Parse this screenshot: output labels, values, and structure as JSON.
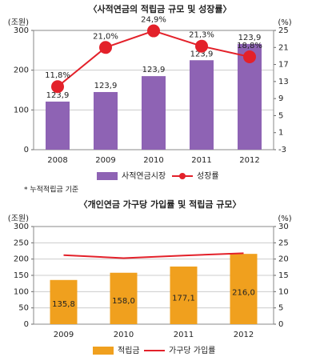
{
  "chart_data": [
    {
      "type": "bar",
      "title": "〈사적연금의 적립금 규모 및 성장률〉",
      "y_label": "(조원)",
      "y2_label": "(%)",
      "categories": [
        "2008",
        "2009",
        "2010",
        "2011",
        "2012"
      ],
      "series": [
        {
          "name": "사적연금시장",
          "color": "#8e63b4",
          "values": [
            121,
            145,
            185,
            225,
            266
          ]
        },
        {
          "name": "성장률",
          "type": "line",
          "axis": "y2",
          "markers": true,
          "color": "#e3212a",
          "values": [
            11.8,
            21.0,
            24.9,
            21.3,
            18.8
          ],
          "value_labels": [
            "11,8%",
            "21,0%",
            "24,9%",
            "21,3%",
            "18,8%"
          ]
        }
      ],
      "annotations": [
        "123,9",
        "123,9",
        "123,9",
        "123,9",
        "123,9"
      ],
      "ylim": [
        0,
        300
      ],
      "yticks": [
        0,
        100,
        200,
        300
      ],
      "y2lim": [
        -3,
        25
      ],
      "y2ticks": [
        -3,
        1,
        5,
        9,
        13,
        17,
        21,
        25
      ],
      "grid": true,
      "footnote": "* 누적적립금 기준"
    },
    {
      "type": "bar",
      "title": "〈개인연금 가구당 가입률 및 적립금 규모〉",
      "y_label": "(조원)",
      "y2_label": "(%)",
      "categories": [
        "2009",
        "2010",
        "2011",
        "2012"
      ],
      "series": [
        {
          "name": "적립금",
          "color": "#f0a01e",
          "values": [
            135.8,
            158.0,
            177.1,
            216.0
          ],
          "value_labels": [
            "135,8",
            "158,0",
            "177,1",
            "216,0"
          ]
        },
        {
          "name": "가구당 가입률",
          "type": "line",
          "axis": "y2",
          "markers": false,
          "color": "#e3212a",
          "values": [
            21.2,
            20.3,
            21.1,
            21.8
          ]
        }
      ],
      "ylim": [
        0,
        300
      ],
      "yticks": [
        0,
        50,
        100,
        150,
        200,
        250,
        300
      ],
      "y2lim": [
        0,
        30
      ],
      "y2ticks": [
        0,
        5,
        10,
        15,
        20,
        25,
        30
      ],
      "grid": true
    }
  ]
}
